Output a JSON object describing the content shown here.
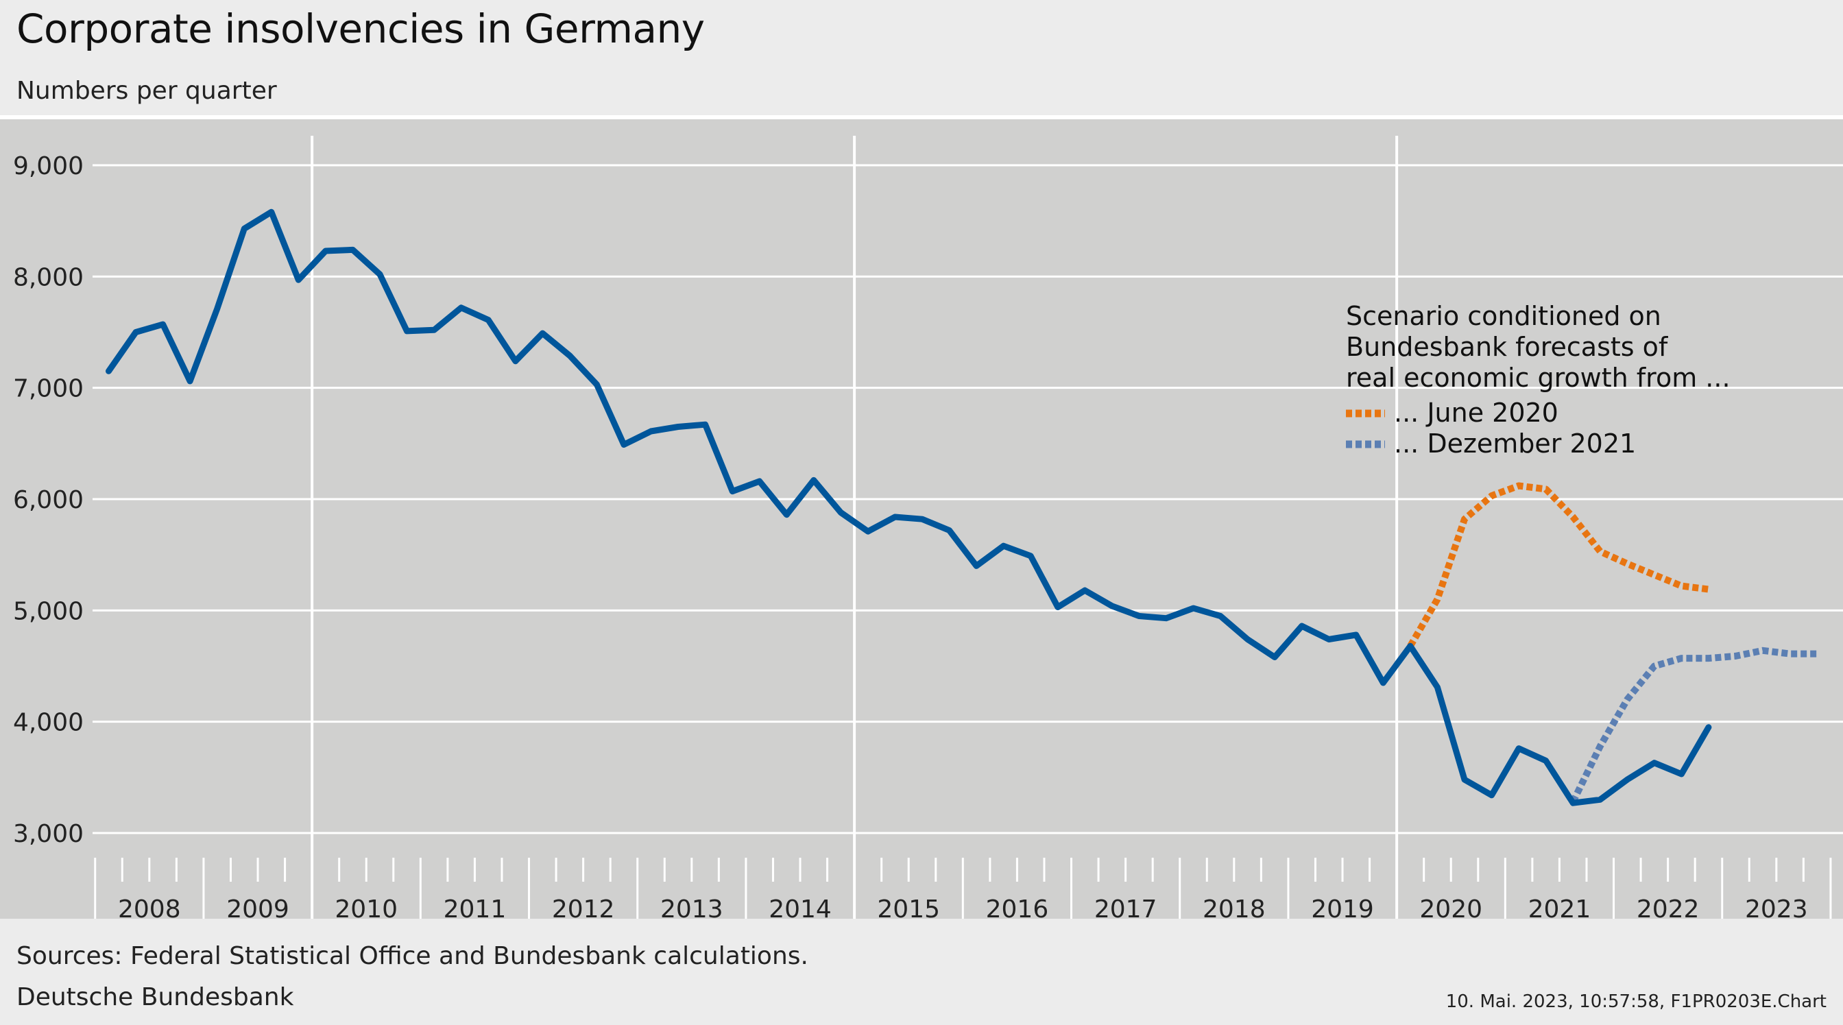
{
  "header": {
    "title": "Corporate insolvencies in Germany",
    "subtitle": "Numbers per quarter"
  },
  "footer": {
    "source": "Sources: Federal Statistical Office and Bundesbank calculations.",
    "publisher": "Deutsche Bundesbank",
    "stamp": "10. Mai. 2023, 10:57:58, F1PR0203E.Chart"
  },
  "colors": {
    "background": "#ececec",
    "plot_background": "#d0d0cf",
    "grid": "#ffffff",
    "actual": "#00569b",
    "june_2020": "#e87511",
    "dec_2021": "#5b7fb3"
  },
  "chart_data": {
    "type": "line",
    "title": "Corporate insolvencies in Germany",
    "subtitle": "Numbers per quarter",
    "xlabel": "",
    "ylabel": "",
    "ylim": [
      3000,
      9000
    ],
    "yticks": [
      3000,
      4000,
      5000,
      6000,
      7000,
      8000,
      9000
    ],
    "ytick_labels": [
      "3,000",
      "4,000",
      "5,000",
      "6,000",
      "7,000",
      "8,000",
      "9,000"
    ],
    "xlim": [
      "2008-Q1",
      "2023-Q4"
    ],
    "year_labels": [
      "2008",
      "2009",
      "2010",
      "2011",
      "2012",
      "2013",
      "2014",
      "2015",
      "2016",
      "2017",
      "2018",
      "2019",
      "2020",
      "2021",
      "2022",
      "2023"
    ],
    "vertical_gridlines_at_years": [
      "2010",
      "2015",
      "2020"
    ],
    "grid": true,
    "legend": {
      "placement": "right",
      "heading": [
        "Scenario conditioned on",
        "Bundesbank forecasts of",
        "real economic growth from ..."
      ],
      "entries": [
        "... June 2020",
        "... Dezember 2021"
      ]
    },
    "series": [
      {
        "name": "",
        "style": "solid",
        "start": "2008-Q1",
        "values": [
          7150,
          7500,
          7570,
          7060,
          7710,
          8430,
          8580,
          7970,
          8230,
          8240,
          8020,
          7510,
          7520,
          7720,
          7610,
          7240,
          7490,
          7290,
          7030,
          6490,
          6610,
          6650,
          6670,
          6070,
          6160,
          5860,
          6170,
          5880,
          5710,
          5840,
          5820,
          5720,
          5400,
          5580,
          5490,
          5030,
          5180,
          5040,
          4950,
          4930,
          5020,
          4950,
          4740,
          4580,
          4860,
          4740,
          4780,
          4350,
          4680,
          4310,
          3480,
          3340,
          3760,
          3650,
          3270,
          3300,
          3480,
          3630,
          3530,
          3950
        ]
      },
      {
        "name": "... June 2020",
        "style": "dotted",
        "start": "2020-Q1",
        "values": [
          4680,
          5100,
          5820,
          6030,
          6120,
          6090,
          5840,
          5530,
          5420,
          5320,
          5220,
          5190
        ]
      },
      {
        "name": "... Dezember 2021",
        "style": "dotted",
        "start": "2021-Q3",
        "values": [
          3280,
          3780,
          4200,
          4500,
          4570,
          4570,
          4590,
          4640,
          4610,
          4610
        ]
      }
    ]
  }
}
